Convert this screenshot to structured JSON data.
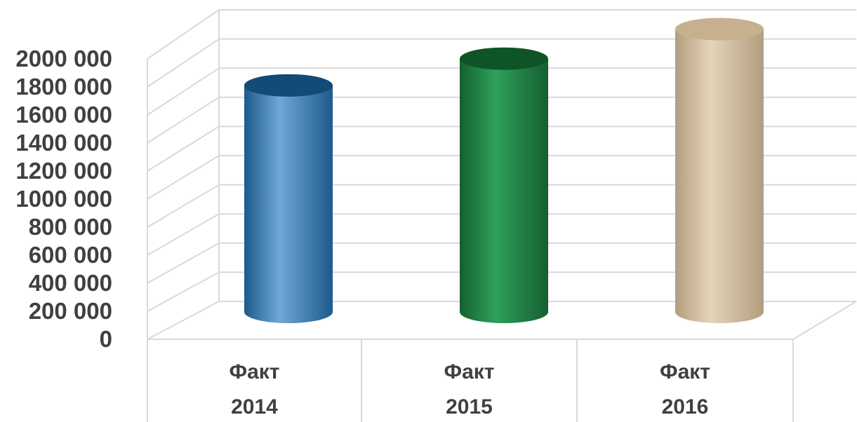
{
  "chart_data": {
    "type": "bar",
    "style": "3d-cylinder",
    "title": "",
    "xlabel": "",
    "ylabel": "",
    "ylim": [
      0,
      2000000
    ],
    "ytick_step": 200000,
    "yticks": [
      "0",
      "200 000",
      "400 000",
      "600 000",
      "800 000",
      "1000 000",
      "1200 000",
      "1400 000",
      "1600 000",
      "1800 000",
      "2000 000"
    ],
    "categories": [
      {
        "line1": "Факт",
        "line2": "2014"
      },
      {
        "line1": "Факт",
        "line2": "2015"
      },
      {
        "line1": "Факт",
        "line2": "2016"
      }
    ],
    "values": [
      1610000,
      1800000,
      2010000
    ],
    "colors": [
      {
        "dark": "#1d5a8c",
        "light": "#6fa7d6",
        "top": "#124a78"
      },
      {
        "dark": "#145f30",
        "light": "#2fa05c",
        "top": "#0f5428"
      },
      {
        "dark": "#b19d7f",
        "light": "#e6d4b6",
        "top": "#c7b08e"
      }
    ],
    "grid": true,
    "legend": "none"
  }
}
